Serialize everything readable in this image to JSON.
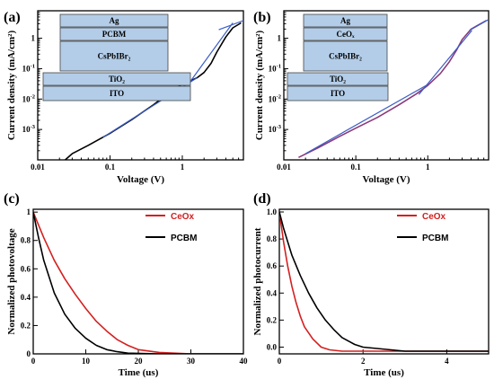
{
  "colors": {
    "red": "#d42020",
    "black": "#000000",
    "blue": "#3a5bc4",
    "purple": "#8a3a7a",
    "layer": "#b3cde8"
  },
  "chart_data": [
    {
      "label": "(a)",
      "type": "line",
      "xscale": "log",
      "yscale": "log",
      "xlabel": "Voltage (V)",
      "ylabel": "Current density (mA/cm²)",
      "xlim": [
        0.01,
        7
      ],
      "ylim": [
        0.0001,
        8
      ],
      "xticks": [
        {
          "v": 0.01,
          "t": "0.01"
        },
        {
          "v": 0.1,
          "t": "0.1"
        },
        {
          "v": 1,
          "t": "1"
        }
      ],
      "yticks": [
        {
          "v": 0.001,
          "b": "10",
          "e": "-3"
        },
        {
          "v": 0.01,
          "b": "10",
          "e": "-2"
        },
        {
          "v": 0.1,
          "b": "10",
          "e": "-1"
        },
        {
          "v": 1,
          "t": "1"
        }
      ],
      "series": [
        {
          "color": "black",
          "x": [
            0.024,
            0.03,
            0.05,
            0.1,
            0.2,
            0.4,
            0.7,
            1.0,
            1.3,
            1.6,
            2.0,
            2.5,
            3,
            4,
            5,
            6.5
          ],
          "y": [
            0.0001,
            0.00016,
            0.0003,
            0.00075,
            0.0021,
            0.0065,
            0.018,
            0.031,
            0.04,
            0.05,
            0.075,
            0.15,
            0.35,
            1.1,
            2.2,
            3.2
          ]
        },
        {
          "color": "blue",
          "x": [
            0.08,
            1.6
          ],
          "y": [
            0.00055,
            0.05
          ]
        },
        {
          "color": "blue",
          "x": [
            1.2,
            5.0
          ],
          "y": [
            0.03,
            3.2
          ]
        },
        {
          "color": "blue",
          "x": [
            3.2,
            7.0
          ],
          "y": [
            1.9,
            3.8
          ]
        }
      ],
      "inset": [
        "Ag",
        "PCBM",
        "CsPbIBr₂",
        "TiO₂",
        "ITO"
      ]
    },
    {
      "label": "(b)",
      "type": "line",
      "xscale": "log",
      "yscale": "log",
      "xlabel": "Voltage (V)",
      "ylabel": "Current density (mA/cm²)",
      "xlim": [
        0.01,
        7
      ],
      "ylim": [
        0.0001,
        8
      ],
      "xticks": [
        {
          "v": 0.01,
          "t": "0.01"
        },
        {
          "v": 0.1,
          "t": "0.1"
        },
        {
          "v": 1,
          "t": "1"
        }
      ],
      "yticks": [
        {
          "v": 0.001,
          "b": "10",
          "e": "-3"
        },
        {
          "v": 0.01,
          "b": "10",
          "e": "-2"
        },
        {
          "v": 0.1,
          "b": "10",
          "e": "-1"
        },
        {
          "v": 1,
          "t": "1"
        }
      ],
      "series": [
        {
          "color": "purple",
          "x": [
            0.016,
            0.03,
            0.06,
            0.1,
            0.2,
            0.4,
            0.7,
            1.0,
            1.5,
            2.0,
            2.5,
            3.0,
            4.0,
            5.0,
            6.5
          ],
          "y": [
            0.00012,
            0.00025,
            0.0006,
            0.0011,
            0.0025,
            0.0065,
            0.015,
            0.028,
            0.07,
            0.17,
            0.4,
            0.9,
            2.0,
            2.7,
            3.8
          ]
        },
        {
          "color": "blue",
          "x": [
            0.02,
            1.0
          ],
          "y": [
            0.00016,
            0.03
          ]
        },
        {
          "color": "blue",
          "x": [
            0.75,
            4.1
          ],
          "y": [
            0.014,
            1.8
          ]
        },
        {
          "color": "blue",
          "x": [
            3.8,
            6.8
          ],
          "y": [
            1.8,
            4.0
          ]
        }
      ],
      "inset": [
        "Ag",
        "CeOₓ",
        "CsPbIBr₂",
        "TiO₂",
        "ITO"
      ]
    },
    {
      "label": "(c)",
      "type": "line",
      "xlabel": "Time (us)",
      "ylabel": "Normalized photovoltage",
      "xlim": [
        0,
        40
      ],
      "ylim": [
        0,
        1.02
      ],
      "xticks": [
        {
          "v": 0,
          "t": "0"
        },
        {
          "v": 10,
          "t": "10"
        },
        {
          "v": 20,
          "t": "20"
        },
        {
          "v": 30,
          "t": "30"
        },
        {
          "v": 40,
          "t": "40"
        }
      ],
      "yticks": [
        {
          "v": 0,
          "t": "0"
        },
        {
          "v": 0.2,
          "t": "0.2"
        },
        {
          "v": 0.4,
          "t": "0.4"
        },
        {
          "v": 0.6,
          "t": "0.6"
        },
        {
          "v": 0.8,
          "t": "0.8"
        },
        {
          "v": 1,
          "t": "1"
        }
      ],
      "series": [
        {
          "name": "CeOx",
          "color": "red",
          "x": [
            0,
            2,
            4,
            6,
            8,
            10,
            12,
            14,
            16,
            18,
            20,
            24,
            30,
            40
          ],
          "y": [
            1.0,
            0.82,
            0.66,
            0.53,
            0.42,
            0.32,
            0.23,
            0.16,
            0.1,
            0.06,
            0.03,
            0.01,
            0.0,
            0.0
          ]
        },
        {
          "name": "PCBM",
          "color": "black",
          "x": [
            0,
            1,
            2,
            4,
            6,
            8,
            10,
            12,
            14,
            16,
            18,
            24,
            30,
            40
          ],
          "y": [
            1.0,
            0.82,
            0.66,
            0.43,
            0.28,
            0.18,
            0.11,
            0.06,
            0.03,
            0.015,
            0.005,
            0.0,
            0.0,
            0.0
          ]
        }
      ]
    },
    {
      "label": "(d)",
      "type": "line",
      "xlabel": "Time (us)",
      "ylabel": "Normalized photocurrent",
      "xlim": [
        0,
        5
      ],
      "ylim": [
        -0.05,
        1.02
      ],
      "xticks": [
        {
          "v": 0,
          "t": "0"
        },
        {
          "v": 2,
          "t": "2"
        },
        {
          "v": 4,
          "t": "4"
        }
      ],
      "yticks": [
        {
          "v": 0,
          "t": "0.0"
        },
        {
          "v": 0.2,
          "t": "0.2"
        },
        {
          "v": 0.4,
          "t": "0.4"
        },
        {
          "v": 0.6,
          "t": "0.6"
        },
        {
          "v": 0.8,
          "t": "0.8"
        },
        {
          "v": 1,
          "t": "1.0"
        }
      ],
      "series": [
        {
          "name": "CeOx",
          "color": "red",
          "x": [
            0,
            0.1,
            0.2,
            0.3,
            0.4,
            0.5,
            0.6,
            0.8,
            1.0,
            1.2,
            1.5,
            2.0,
            3.0,
            5.0
          ],
          "y": [
            1.0,
            0.78,
            0.6,
            0.45,
            0.33,
            0.23,
            0.15,
            0.06,
            0.0,
            -0.02,
            -0.03,
            -0.03,
            -0.03,
            -0.03
          ]
        },
        {
          "name": "PCBM",
          "color": "black",
          "x": [
            0,
            0.1,
            0.2,
            0.3,
            0.5,
            0.7,
            0.9,
            1.1,
            1.3,
            1.5,
            1.8,
            2.0,
            3.0,
            5.0
          ],
          "y": [
            1.0,
            0.88,
            0.78,
            0.68,
            0.53,
            0.4,
            0.29,
            0.2,
            0.13,
            0.07,
            0.02,
            0.0,
            -0.03,
            -0.03
          ]
        }
      ]
    }
  ]
}
